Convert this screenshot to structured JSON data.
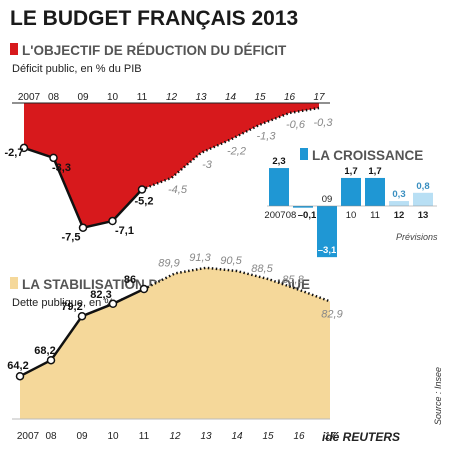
{
  "title": "LE BUDGET FRANÇAIS 2013",
  "source": "Source : Insee",
  "logo": "idé REUTERS",
  "colors": {
    "deficit_fill": "#d7191c",
    "growth_bar": "#1f97d4",
    "growth_forecast": "#b8dff4",
    "growth_forecast_label": "#3a8fc0",
    "debt_fill": "#f5d89a",
    "forecast_label": "#888888",
    "text": "#1a1a1a"
  },
  "chart_data": [
    {
      "type": "area",
      "title": "L'OBJECTIF DE RÉDUCTION DU DÉFICIT",
      "subtitle": "Déficit public, en % du PIB",
      "categories": [
        "2007",
        "08",
        "09",
        "10",
        "11",
        "12",
        "13",
        "14",
        "15",
        "16",
        "17"
      ],
      "values": [
        -2.7,
        -3.3,
        -7.5,
        -7.1,
        -5.2,
        -4.5,
        -3,
        -2.2,
        -1.3,
        -0.6,
        -0.3
      ],
      "labels": [
        "-2,7",
        "-3,3",
        "-7,5",
        "-7,1",
        "-5,2",
        "-4,5",
        "-3",
        "-2,2",
        "-1,3",
        "-0,6",
        "-0,3"
      ],
      "actual_until_index": 4,
      "ylim": [
        -8,
        0
      ]
    },
    {
      "type": "bar",
      "title": "LA CROISSANCE",
      "categories": [
        "2007",
        "08",
        "09",
        "10",
        "11",
        "12",
        "13"
      ],
      "values": [
        2.3,
        -0.1,
        -3.1,
        1.7,
        1.7,
        0.3,
        0.8
      ],
      "labels": [
        "2,3",
        "–0,1",
        "–3,1",
        "1,7",
        "1,7",
        "0,3",
        "0,8"
      ],
      "forecast_from_index": 5,
      "annotation": "Prévisions",
      "ylim": [
        -3.5,
        2.5
      ]
    },
    {
      "type": "area",
      "title": "LA STABILISATION DE LA DETTE PUBLIQUE",
      "subtitle": "Dette publique, en % du PIB",
      "categories": [
        "2007",
        "08",
        "09",
        "10",
        "11",
        "12",
        "13",
        "14",
        "15",
        "16",
        "17"
      ],
      "values": [
        64.2,
        68.2,
        79.2,
        82.3,
        86,
        89.9,
        91.3,
        90.5,
        88.5,
        85.8,
        82.9
      ],
      "labels": [
        "64,2",
        "68,2",
        "79,2",
        "82,3",
        "86",
        "89,9",
        "91,3",
        "90,5",
        "88,5",
        "85,8",
        "82,9"
      ],
      "actual_until_index": 4,
      "ylim": [
        50,
        100
      ]
    }
  ]
}
